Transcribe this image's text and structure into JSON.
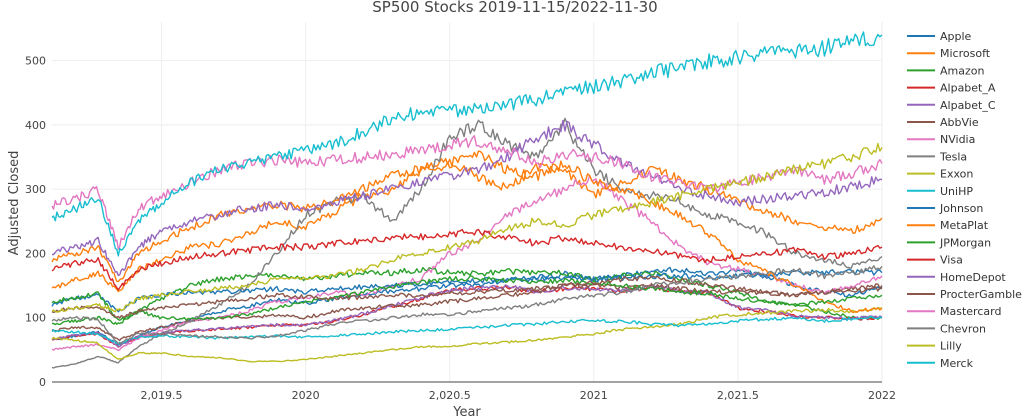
{
  "chart_data": {
    "type": "line",
    "title": "SP500 Stocks 2019-11-15/2022-11-30",
    "xlabel": "Year",
    "ylabel": "Adjusted Closed",
    "xlim": [
      2019.12,
      2022.0
    ],
    "ylim": [
      0,
      560
    ],
    "x_ticks": [
      {
        "value": 2019.5,
        "label": "2,019.5"
      },
      {
        "value": 2020.0,
        "label": "2020"
      },
      {
        "value": 2020.5,
        "label": "2,020.5"
      },
      {
        "value": 2021.0,
        "label": "2021"
      },
      {
        "value": 2021.5,
        "label": "2,021.5"
      },
      {
        "value": 2022.0,
        "label": "2022"
      }
    ],
    "y_ticks": [
      {
        "value": 0,
        "label": "0"
      },
      {
        "value": 100,
        "label": "100"
      },
      {
        "value": 200,
        "label": "200"
      },
      {
        "value": 300,
        "label": "300"
      },
      {
        "value": 400,
        "label": "400"
      },
      {
        "value": 500,
        "label": "500"
      }
    ],
    "grid": true,
    "legend_position": "right",
    "x": [
      2019.12,
      2019.2,
      2019.28,
      2019.35,
      2019.42,
      2019.5,
      2019.6,
      2019.7,
      2019.8,
      2019.9,
      2020.0,
      2020.1,
      2020.2,
      2020.3,
      2020.4,
      2020.5,
      2020.6,
      2020.7,
      2020.8,
      2020.9,
      2021.0,
      2021.1,
      2021.2,
      2021.3,
      2021.4,
      2021.5,
      2021.6,
      2021.7,
      2021.8,
      2021.9,
      2022.0
    ],
    "series": [
      {
        "name": "Apple",
        "color": "#1f77b4",
        "values": [
          65,
          72,
          78,
          58,
          72,
          85,
          95,
          110,
          118,
          128,
          122,
          130,
          135,
          142,
          145,
          150,
          152,
          158,
          162,
          168,
          160,
          165,
          172,
          175,
          168,
          172,
          165,
          150,
          140,
          135,
          148
        ]
      },
      {
        "name": "Microsoft",
        "color": "#ff7f0e",
        "values": [
          145,
          158,
          170,
          140,
          175,
          190,
          210,
          215,
          230,
          250,
          240,
          265,
          290,
          300,
          330,
          345,
          320,
          300,
          335,
          330,
          290,
          310,
          330,
          315,
          300,
          280,
          265,
          250,
          240,
          235,
          255
        ]
      },
      {
        "name": "Amazon",
        "color": "#2ca02c",
        "values": [
          90,
          95,
          100,
          90,
          110,
          130,
          150,
          160,
          165,
          165,
          160,
          165,
          170,
          170,
          175,
          170,
          168,
          172,
          170,
          170,
          160,
          165,
          170,
          160,
          150,
          140,
          125,
          120,
          110,
          100,
          100
        ]
      },
      {
        "name": "Alpabet_A",
        "color": "#d62728",
        "values": [
          65,
          72,
          75,
          55,
          70,
          75,
          80,
          82,
          85,
          88,
          88,
          95,
          105,
          118,
          130,
          142,
          145,
          148,
          140,
          145,
          145,
          140,
          148,
          140,
          138,
          115,
          110,
          102,
          100,
          98,
          100
        ]
      },
      {
        "name": "Alpabet_C",
        "color": "#9467bd",
        "values": [
          66,
          73,
          76,
          55,
          71,
          76,
          81,
          83,
          86,
          89,
          89,
          96,
          106,
          119,
          131,
          143,
          146,
          149,
          141,
          146,
          146,
          141,
          149,
          141,
          139,
          116,
          111,
          103,
          101,
          99,
          101
        ]
      },
      {
        "name": "AbbVie",
        "color": "#8c564b",
        "values": [
          80,
          85,
          85,
          65,
          78,
          85,
          95,
          100,
          100,
          105,
          100,
          110,
          115,
          118,
          120,
          125,
          130,
          135,
          140,
          150,
          150,
          148,
          150,
          145,
          140,
          140,
          138,
          135,
          140,
          145,
          150
        ]
      },
      {
        "name": "NVidia",
        "color": "#e377c2",
        "values": [
          50,
          55,
          58,
          50,
          68,
          80,
          95,
          100,
          110,
          125,
          130,
          140,
          135,
          150,
          160,
          200,
          220,
          260,
          280,
          300,
          320,
          280,
          250,
          210,
          185,
          175,
          165,
          150,
          140,
          150,
          165
        ]
      },
      {
        "name": "Tesla",
        "color": "#7f7f7f",
        "values": [
          22,
          28,
          40,
          30,
          55,
          75,
          95,
          120,
          150,
          200,
          260,
          280,
          290,
          250,
          300,
          380,
          400,
          370,
          350,
          400,
          330,
          300,
          290,
          280,
          260,
          250,
          230,
          200,
          190,
          180,
          195
        ]
      },
      {
        "name": "Exxon",
        "color": "#bcbd22",
        "values": [
          68,
          65,
          60,
          35,
          45,
          45,
          40,
          38,
          32,
          32,
          35,
          40,
          45,
          50,
          55,
          55,
          60,
          62,
          65,
          70,
          75,
          82,
          85,
          90,
          100,
          105,
          108,
          110,
          112,
          110,
          115
        ]
      },
      {
        "name": "UniHP",
        "color": "#17becf",
        "values": [
          80,
          78,
          75,
          60,
          70,
          72,
          70,
          68,
          70,
          72,
          70,
          72,
          75,
          78,
          80,
          82,
          85,
          88,
          90,
          95,
          95,
          95,
          90,
          88,
          90,
          95,
          98,
          100,
          95,
          98,
          100
        ]
      },
      {
        "name": "Johnson",
        "color": "#1f77b4",
        "values": [
          120,
          130,
          135,
          110,
          130,
          135,
          140,
          140,
          142,
          145,
          140,
          145,
          148,
          150,
          152,
          155,
          158,
          160,
          160,
          162,
          160,
          162,
          165,
          165,
          162,
          165,
          168,
          170,
          170,
          172,
          170
        ]
      },
      {
        "name": "MetaPlat",
        "color": "#ff7f0e",
        "values": [
          190,
          200,
          210,
          155,
          200,
          220,
          240,
          260,
          270,
          275,
          270,
          280,
          300,
          320,
          330,
          340,
          355,
          330,
          320,
          340,
          310,
          300,
          280,
          260,
          230,
          190,
          170,
          150,
          125,
          110,
          115
        ]
      },
      {
        "name": "JPMorgan",
        "color": "#2ca02c",
        "values": [
          125,
          132,
          138,
          95,
          110,
          100,
          98,
          100,
          105,
          115,
          125,
          130,
          140,
          148,
          155,
          160,
          162,
          158,
          155,
          158,
          155,
          150,
          145,
          140,
          138,
          130,
          125,
          120,
          125,
          130,
          135
        ]
      },
      {
        "name": "Visa",
        "color": "#d62728",
        "values": [
          175,
          185,
          190,
          145,
          175,
          185,
          195,
          200,
          205,
          210,
          210,
          215,
          220,
          225,
          225,
          230,
          235,
          225,
          215,
          225,
          215,
          210,
          205,
          195,
          190,
          195,
          200,
          205,
          195,
          200,
          210
        ]
      },
      {
        "name": "HomeDepot",
        "color": "#9467bd",
        "values": [
          200,
          210,
          220,
          165,
          210,
          235,
          250,
          260,
          270,
          275,
          270,
          280,
          290,
          300,
          310,
          320,
          330,
          350,
          380,
          400,
          370,
          340,
          320,
          300,
          290,
          280,
          285,
          290,
          295,
          305,
          315
        ]
      },
      {
        "name": "ProcterGamble",
        "color": "#8c564b",
        "values": [
          110,
          115,
          118,
          100,
          110,
          115,
          120,
          125,
          130,
          135,
          132,
          130,
          132,
          135,
          135,
          138,
          140,
          142,
          145,
          150,
          155,
          160,
          162,
          158,
          150,
          145,
          140,
          135,
          140,
          142,
          145
        ]
      },
      {
        "name": "Mastercard",
        "color": "#e377c2",
        "values": [
          275,
          285,
          300,
          210,
          270,
          290,
          310,
          330,
          340,
          345,
          340,
          345,
          350,
          355,
          360,
          370,
          375,
          360,
          340,
          355,
          350,
          340,
          320,
          310,
          300,
          310,
          320,
          330,
          315,
          325,
          340
        ]
      },
      {
        "name": "Chevron",
        "color": "#7f7f7f",
        "values": [
          95,
          100,
          98,
          60,
          75,
          75,
          72,
          70,
          68,
          72,
          80,
          90,
          95,
          100,
          105,
          105,
          110,
          115,
          120,
          130,
          135,
          140,
          150,
          155,
          160,
          165,
          170,
          175,
          165,
          170,
          180
        ]
      },
      {
        "name": "Lilly",
        "color": "#bcbd22",
        "values": [
          110,
          115,
          120,
          110,
          130,
          135,
          140,
          145,
          150,
          160,
          160,
          165,
          175,
          190,
          200,
          210,
          220,
          240,
          250,
          245,
          260,
          270,
          280,
          290,
          300,
          310,
          320,
          330,
          340,
          350,
          365
        ]
      },
      {
        "name": "Merck",
        "color": "#17becf",
        "values": [
          255,
          270,
          285,
          200,
          250,
          280,
          310,
          330,
          340,
          350,
          360,
          370,
          390,
          410,
          420,
          420,
          425,
          430,
          440,
          450,
          460,
          470,
          480,
          490,
          500,
          505,
          510,
          515,
          520,
          530,
          540
        ]
      }
    ]
  }
}
